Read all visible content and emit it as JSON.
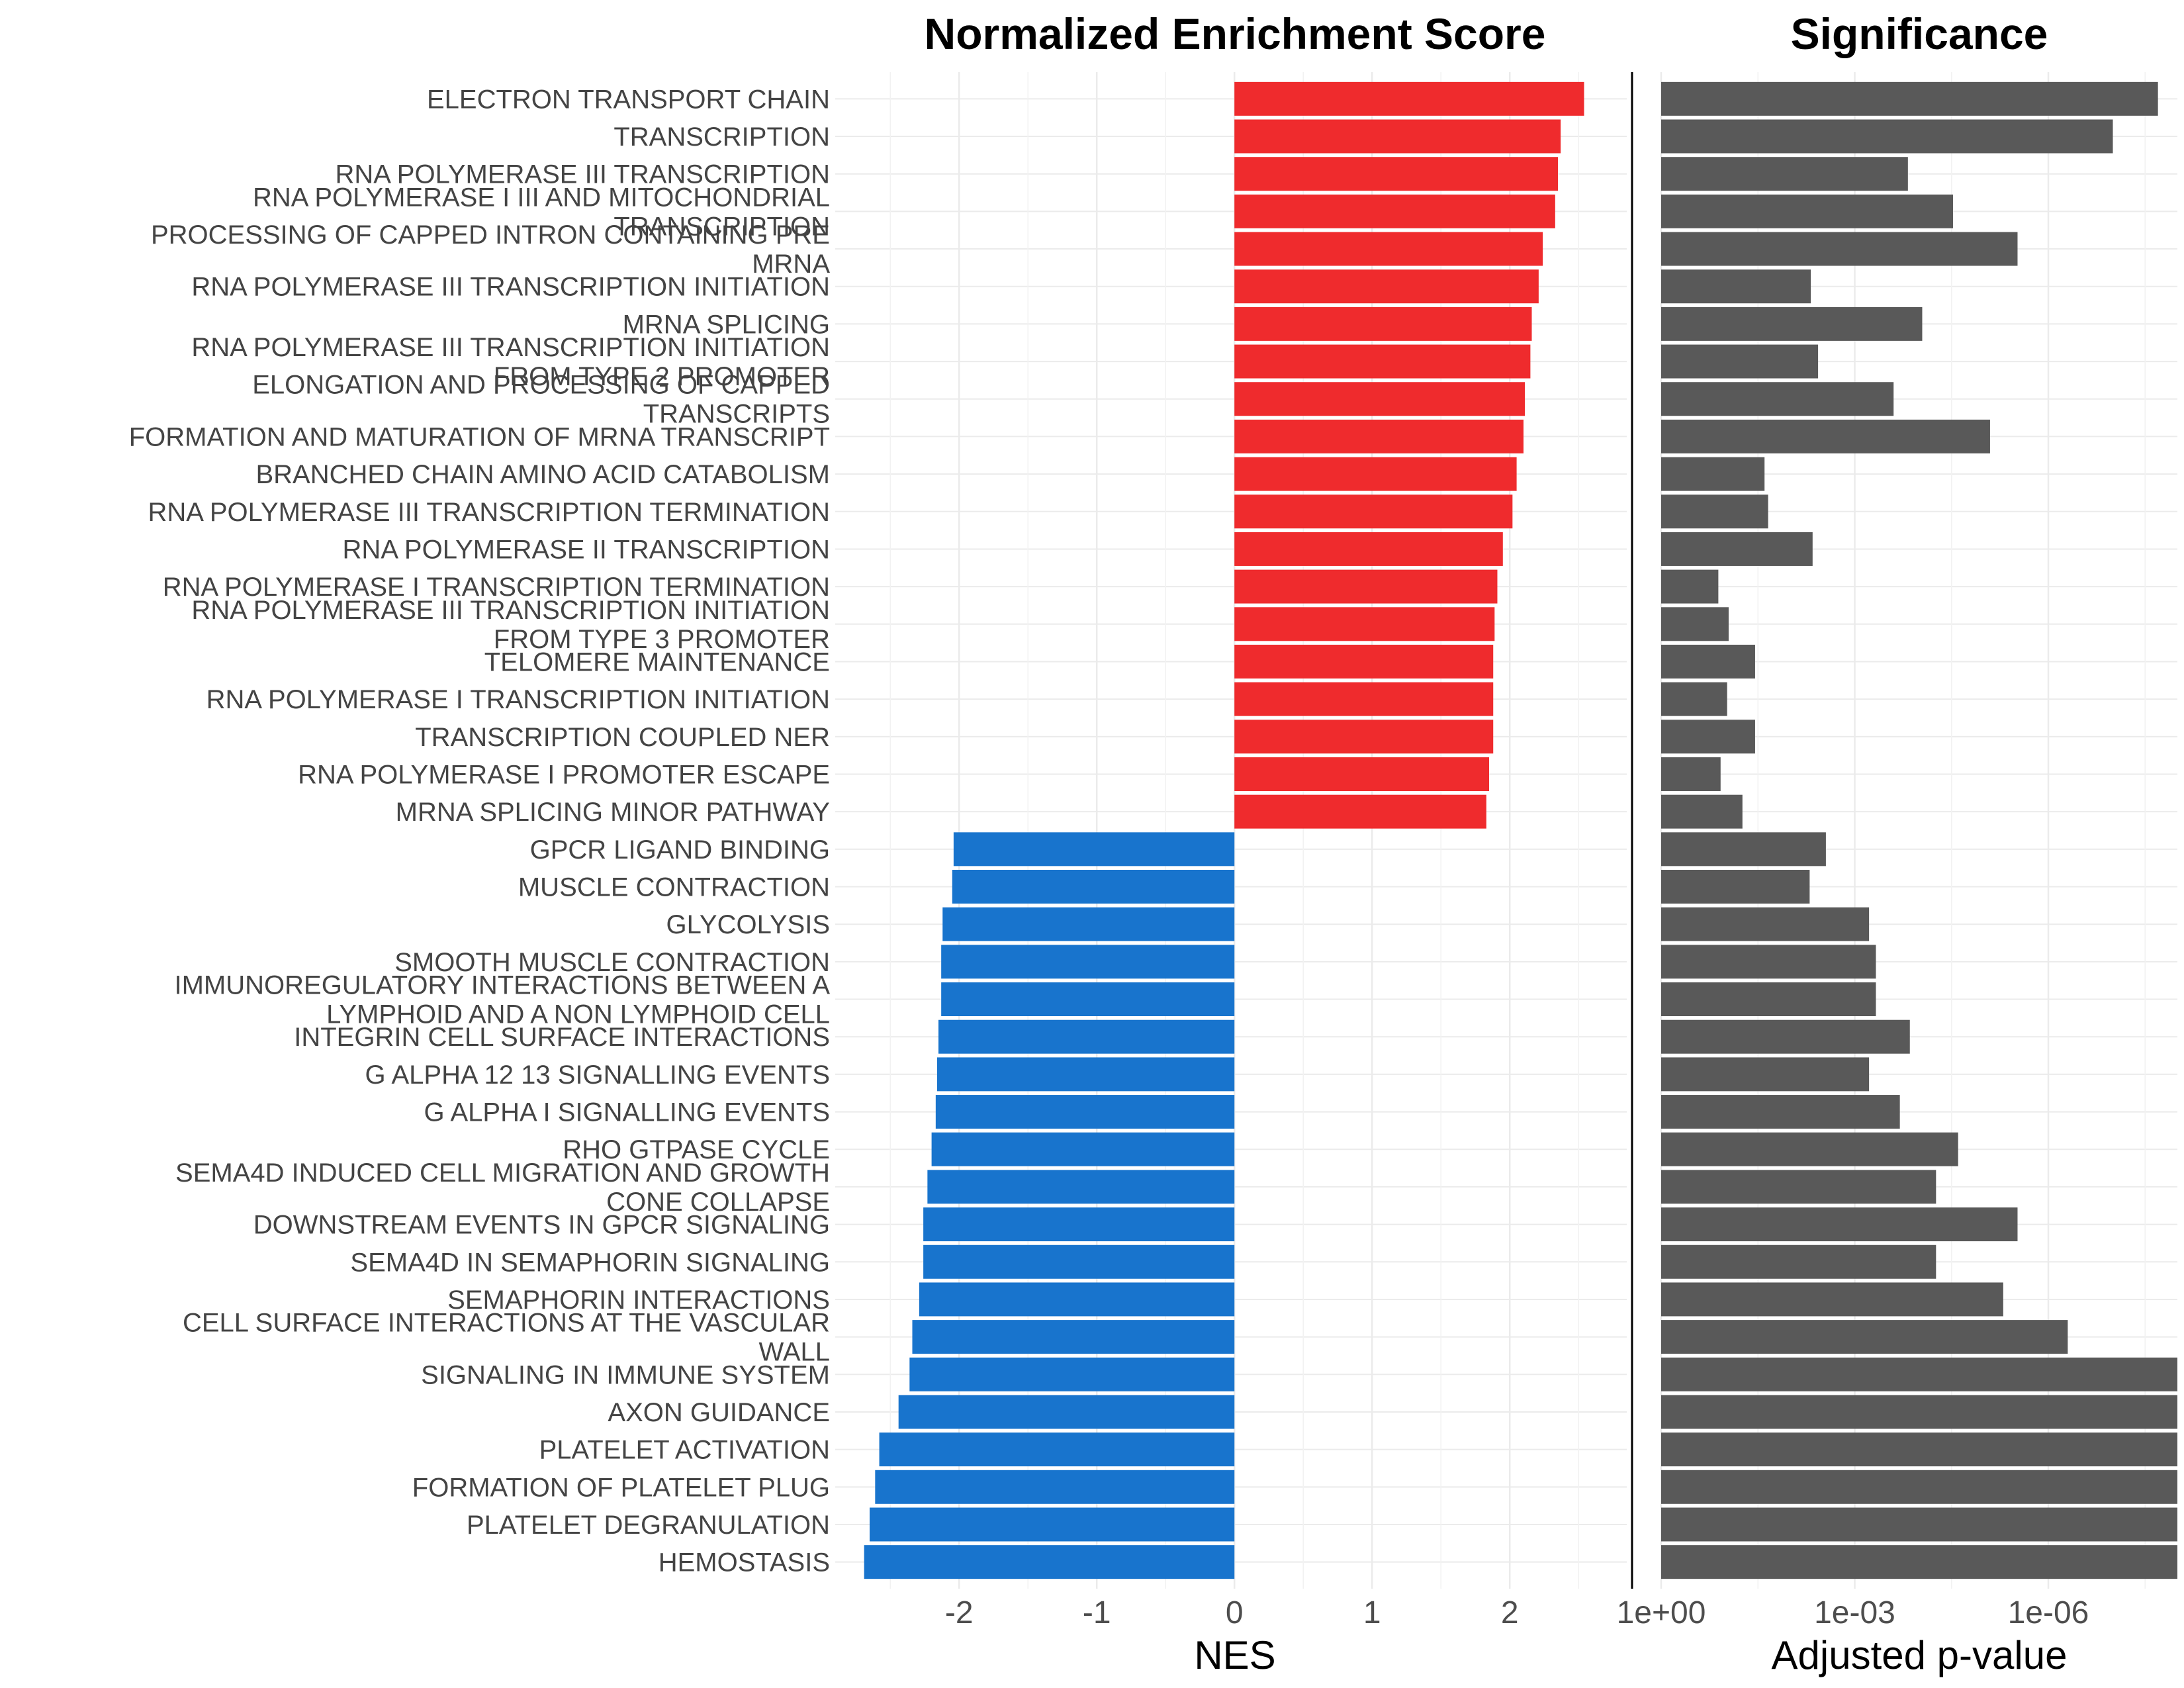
{
  "chart_data": [
    {
      "type": "bar",
      "orientation": "horizontal",
      "title": "Normalized Enrichment Score",
      "xlabel": "NES",
      "xlim": [
        -2.9,
        2.85
      ],
      "xticks": [
        -2,
        -1,
        0,
        1,
        2
      ],
      "grid": true,
      "legend": "none",
      "colors": {
        "positive": "#ef2b2d",
        "negative": "#1874cd"
      },
      "categories": [
        [
          "ELECTRON TRANSPORT CHAIN"
        ],
        [
          "TRANSCRIPTION"
        ],
        [
          "RNA POLYMERASE III TRANSCRIPTION"
        ],
        [
          "RNA POLYMERASE I III AND MITOCHONDRIAL",
          "TRANSCRIPTION"
        ],
        [
          "PROCESSING OF CAPPED INTRON CONTAINING PRE",
          "MRNA"
        ],
        [
          "RNA POLYMERASE III TRANSCRIPTION INITIATION"
        ],
        [
          "MRNA SPLICING"
        ],
        [
          "RNA POLYMERASE III TRANSCRIPTION INITIATION",
          "FROM TYPE 2 PROMOTER"
        ],
        [
          "ELONGATION AND PROCESSING OF CAPPED",
          "TRANSCRIPTS"
        ],
        [
          "FORMATION AND MATURATION OF MRNA TRANSCRIPT"
        ],
        [
          "BRANCHED CHAIN AMINO ACID CATABOLISM"
        ],
        [
          "RNA POLYMERASE III TRANSCRIPTION TERMINATION"
        ],
        [
          "RNA POLYMERASE II TRANSCRIPTION"
        ],
        [
          "RNA POLYMERASE I TRANSCRIPTION TERMINATION"
        ],
        [
          "RNA POLYMERASE III TRANSCRIPTION INITIATION",
          "FROM TYPE 3 PROMOTER"
        ],
        [
          "TELOMERE MAINTENANCE"
        ],
        [
          "RNA POLYMERASE I TRANSCRIPTION INITIATION"
        ],
        [
          "TRANSCRIPTION COUPLED NER"
        ],
        [
          "RNA POLYMERASE I PROMOTER ESCAPE"
        ],
        [
          "MRNA SPLICING MINOR PATHWAY"
        ],
        [
          "GPCR LIGAND BINDING"
        ],
        [
          "MUSCLE CONTRACTION"
        ],
        [
          "GLYCOLYSIS"
        ],
        [
          "SMOOTH MUSCLE CONTRACTION"
        ],
        [
          "IMMUNOREGULATORY INTERACTIONS BETWEEN A",
          "LYMPHOID AND A NON LYMPHOID CELL"
        ],
        [
          "INTEGRIN CELL SURFACE INTERACTIONS"
        ],
        [
          "G ALPHA 12 13 SIGNALLING EVENTS"
        ],
        [
          "G ALPHA I SIGNALLING EVENTS"
        ],
        [
          "RHO GTPASE CYCLE"
        ],
        [
          "SEMA4D INDUCED CELL MIGRATION AND GROWTH",
          "CONE COLLAPSE"
        ],
        [
          "DOWNSTREAM EVENTS IN GPCR SIGNALING"
        ],
        [
          "SEMA4D IN SEMAPHORIN SIGNALING"
        ],
        [
          "SEMAPHORIN INTERACTIONS"
        ],
        [
          "CELL SURFACE INTERACTIONS AT THE VASCULAR",
          "WALL"
        ],
        [
          "SIGNALING IN IMMUNE SYSTEM"
        ],
        [
          "AXON GUIDANCE"
        ],
        [
          "PLATELET ACTIVATION"
        ],
        [
          "FORMATION OF PLATELET PLUG"
        ],
        [
          "PLATELET DEGRANULATION"
        ],
        [
          "HEMOSTASIS"
        ]
      ],
      "values": [
        2.54,
        2.37,
        2.35,
        2.33,
        2.24,
        2.21,
        2.16,
        2.15,
        2.11,
        2.1,
        2.05,
        2.02,
        1.95,
        1.91,
        1.89,
        1.88,
        1.88,
        1.88,
        1.85,
        1.83,
        -2.04,
        -2.05,
        -2.12,
        -2.13,
        -2.13,
        -2.15,
        -2.16,
        -2.17,
        -2.2,
        -2.23,
        -2.26,
        -2.26,
        -2.29,
        -2.34,
        -2.36,
        -2.44,
        -2.58,
        -2.61,
        -2.65,
        -2.69
      ]
    },
    {
      "type": "bar",
      "orientation": "horizontal",
      "title": "Significance",
      "xlabel": "Adjusted p-value",
      "x_scale": "reverse-log10",
      "xlim": [
        1,
        1e-08
      ],
      "xticks": [
        "1e+00",
        "1e-03",
        "1e-06"
      ],
      "grid": true,
      "legend": "none",
      "colors": {
        "bar": "#595959"
      },
      "values": [
        2e-08,
        1e-07,
        0.00015,
        3e-05,
        3e-06,
        0.0048,
        9e-05,
        0.0037,
        0.00025,
        8e-06,
        0.025,
        0.022,
        0.0045,
        0.13,
        0.09,
        0.035,
        0.095,
        0.035,
        0.12,
        0.055,
        0.0028,
        0.005,
        0.0006,
        0.00047,
        0.00047,
        0.00014,
        0.0006,
        0.0002,
        2.5e-05,
        5.5e-05,
        3e-06,
        5.5e-05,
        5e-06,
        5e-07,
        1e-08,
        1e-08,
        1e-08,
        1e-08,
        1e-08,
        1e-08
      ]
    }
  ]
}
